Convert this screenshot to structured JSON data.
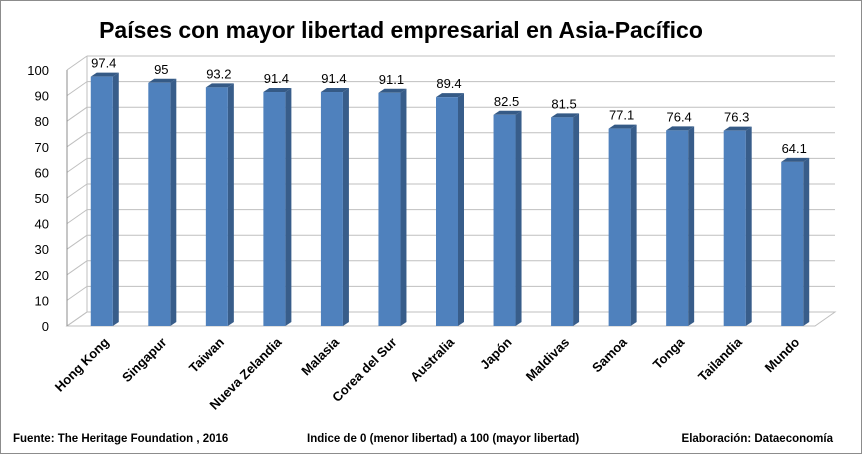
{
  "chart_data": {
    "type": "bar",
    "title": "Países con mayor libertad empresarial en Asia-Pacífico",
    "categories": [
      "Hong Kong",
      "Singapur",
      "Taiwan",
      "Nueva Zelandia",
      "Malasia",
      "Corea del Sur",
      "Australia",
      "Japón",
      "Maldivas",
      "Samoa",
      "Tonga",
      "Tailandia",
      "Mundo"
    ],
    "values": [
      97.4,
      95,
      93.2,
      91.4,
      91.4,
      91.1,
      89.4,
      82.5,
      81.5,
      77.1,
      76.4,
      76.3,
      64.1
    ],
    "value_labels": [
      "97.4",
      "95",
      "93.2",
      "91.4",
      "91.4",
      "91.1",
      "89.4",
      "82.5",
      "81.5",
      "77.1",
      "76.4",
      "76.3",
      "64.1"
    ],
    "ylim": [
      0,
      100
    ],
    "yticks": [
      0,
      10,
      20,
      30,
      40,
      50,
      60,
      70,
      80,
      90,
      100
    ],
    "ytick_labels": [
      "0",
      "10",
      "20",
      "30",
      "40",
      "50",
      "60",
      "70",
      "80",
      "90",
      "100"
    ],
    "grid": true,
    "three_d": true,
    "legend": "none",
    "bar_color": "#4f81bd",
    "bar_side_color": "#385d8a",
    "bar_top_color": "#355a86"
  },
  "footer": {
    "source": "Fuente: The Heritage Foundation , 2016",
    "note": "Indice de 0 (menor libertad) a 100  (mayor libertad)",
    "credit": "Elaboración: Dataeconomía"
  }
}
